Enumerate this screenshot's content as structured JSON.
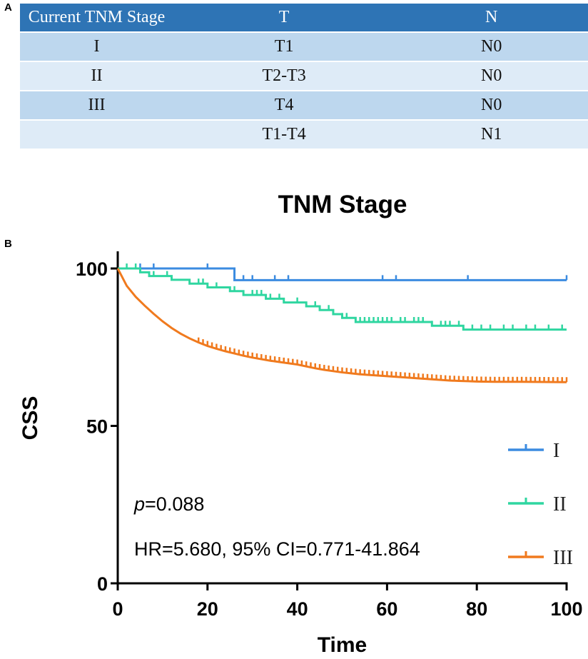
{
  "panel_a": {
    "letter": "A",
    "table": {
      "headers": [
        "Current TNM Stage",
        "T",
        "N"
      ],
      "rows": [
        [
          "I",
          "T1",
          "N0"
        ],
        [
          "II",
          "T2-T3",
          "N0"
        ],
        [
          "III",
          "T4",
          "N0"
        ],
        [
          "",
          "T1-T4",
          "N1"
        ]
      ]
    }
  },
  "panel_b": {
    "letter": "B"
  },
  "chart_data": {
    "type": "line",
    "title": "TNM Stage",
    "xlabel": "Time",
    "ylabel": "CSS",
    "xlim": [
      0,
      100
    ],
    "ylim": [
      0,
      105
    ],
    "xticks": [
      0,
      20,
      40,
      60,
      80,
      100
    ],
    "yticks": [
      0,
      50,
      100
    ],
    "annotations": {
      "p_label": "p",
      "p_value": "=0.088",
      "hr": "HR=5.680, 95% CI=0.771-41.864"
    },
    "legend_position": "bottom-right",
    "series": [
      {
        "name": "I",
        "color": "#3b8be0",
        "steps": [
          [
            0,
            100
          ],
          [
            26,
            96.3
          ],
          [
            100,
            96.3
          ]
        ],
        "censors": [
          5,
          8,
          20,
          28,
          30,
          35,
          38,
          59,
          62,
          78,
          100
        ]
      },
      {
        "name": "II",
        "color": "#2fd6a0",
        "steps": [
          [
            0,
            100
          ],
          [
            5,
            98.8
          ],
          [
            7,
            97.6
          ],
          [
            12,
            96.4
          ],
          [
            16,
            95.2
          ],
          [
            20,
            94
          ],
          [
            25,
            92.8
          ],
          [
            28,
            91.6
          ],
          [
            33,
            90.4
          ],
          [
            37,
            89.2
          ],
          [
            42,
            88
          ],
          [
            45,
            86.8
          ],
          [
            48,
            85.5
          ],
          [
            50,
            84.3
          ],
          [
            53,
            83
          ],
          [
            70,
            81.8
          ],
          [
            77,
            80.6
          ],
          [
            100,
            80.6
          ]
        ],
        "censors": [
          2,
          4,
          8,
          11,
          18,
          19,
          22,
          26,
          30,
          31,
          32,
          34,
          36,
          40,
          44,
          47,
          48,
          50,
          51,
          54,
          55,
          56,
          57,
          58,
          59,
          60,
          61,
          63,
          64,
          66,
          67,
          68,
          70,
          72,
          73,
          74,
          76,
          79,
          81,
          83,
          86,
          88,
          91,
          93,
          96,
          99
        ]
      },
      {
        "name": "III",
        "color": "#f07a1e",
        "curve": [
          [
            0,
            100
          ],
          [
            2,
            94.5
          ],
          [
            4,
            91
          ],
          [
            6,
            88.2
          ],
          [
            8,
            85.6
          ],
          [
            10,
            83.2
          ],
          [
            12,
            81.1
          ],
          [
            14,
            79.3
          ],
          [
            16,
            77.8
          ],
          [
            18,
            76.5
          ],
          [
            20,
            75.4
          ],
          [
            22,
            74.5
          ],
          [
            24,
            73.7
          ],
          [
            26,
            73
          ],
          [
            28,
            72.3
          ],
          [
            30,
            71.7
          ],
          [
            32,
            71.2
          ],
          [
            34,
            70.7
          ],
          [
            36,
            70.3
          ],
          [
            38,
            69.9
          ],
          [
            40,
            69.5
          ],
          [
            42,
            68.9
          ],
          [
            44,
            68.3
          ],
          [
            46,
            67.8
          ],
          [
            48,
            67.4
          ],
          [
            50,
            67
          ],
          [
            52,
            66.7
          ],
          [
            54,
            66.4
          ],
          [
            56,
            66.2
          ],
          [
            58,
            66
          ],
          [
            60,
            65.8
          ],
          [
            62,
            65.6
          ],
          [
            64,
            65.4
          ],
          [
            66,
            65.2
          ],
          [
            68,
            65
          ],
          [
            70,
            64.8
          ],
          [
            72,
            64.6
          ],
          [
            74,
            64.4
          ],
          [
            76,
            64.3
          ],
          [
            78,
            64.2
          ],
          [
            80,
            64.1
          ],
          [
            84,
            64
          ],
          [
            90,
            64
          ],
          [
            100,
            63.9
          ]
        ],
        "censor_start": 18,
        "censor_end": 100,
        "censor_step": 1
      }
    ]
  }
}
